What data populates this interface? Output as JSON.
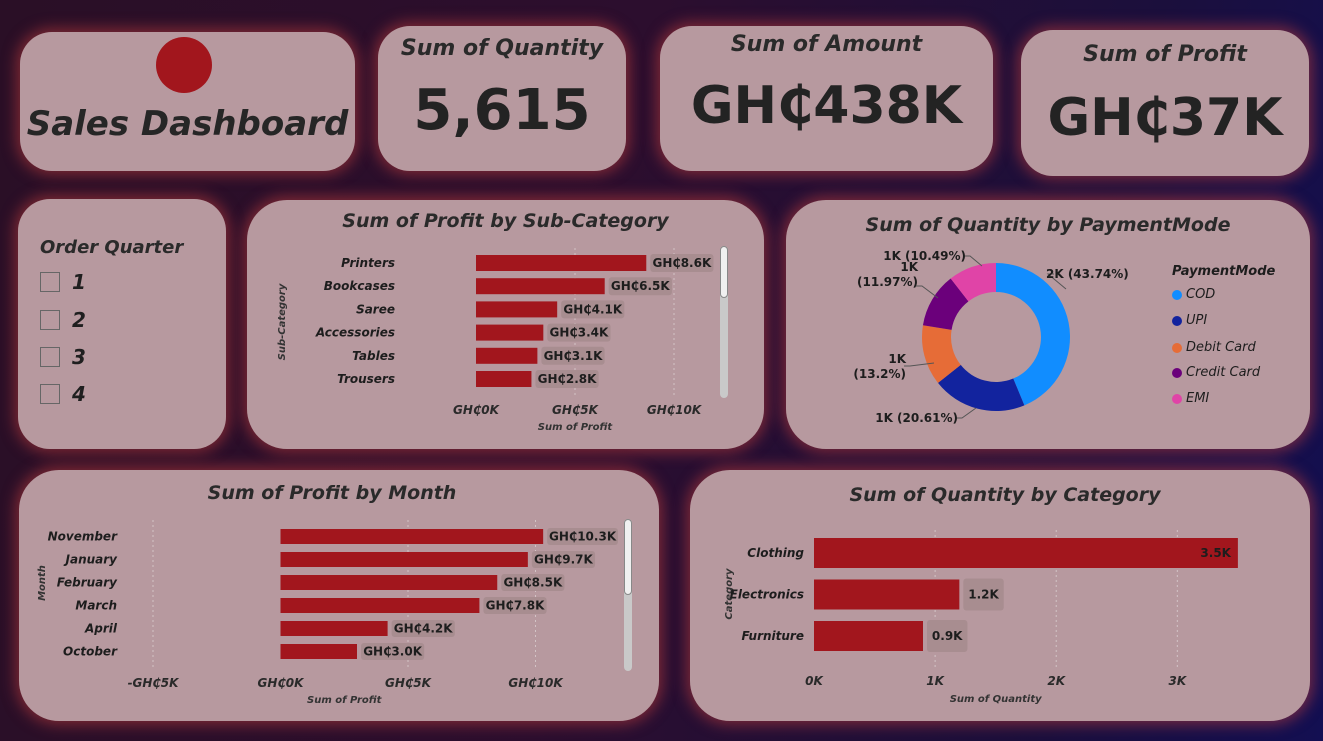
{
  "header": {
    "title": "Sales Dashboard",
    "logo_color": "#a2161d"
  },
  "kpis": [
    {
      "label": "Sum of Quantity",
      "value": "5,615"
    },
    {
      "label": "Sum of Amount",
      "value": "GH₵438K"
    },
    {
      "label": "Sum of Profit",
      "value": "GH₵37K"
    }
  ],
  "slicer": {
    "title": "Order Quarter",
    "options": [
      "1",
      "2",
      "3",
      "4"
    ]
  },
  "colors": {
    "bar": "#a2161d",
    "label_bg": "#a88d90"
  },
  "chart_data": [
    {
      "id": "profit_by_subcategory",
      "type": "bar",
      "orientation": "horizontal",
      "title": "Sum of Profit by Sub-Category",
      "xlabel": "Sum of Profit",
      "ylabel": "Sub-Category",
      "categories": [
        "Printers",
        "Bookcases",
        "Saree",
        "Accessories",
        "Tables",
        "Trousers"
      ],
      "values": [
        8600,
        6500,
        4100,
        3400,
        3100,
        2800
      ],
      "data_labels": [
        "GH₵8.6K",
        "GH₵6.5K",
        "GH₵4.1K",
        "GH₵3.4K",
        "GH₵3.1K",
        "GH₵2.8K"
      ],
      "xlim": [
        0,
        10000
      ],
      "xticks": [
        0,
        5000,
        10000
      ],
      "xtick_labels": [
        "GH₵0K",
        "GH₵5K",
        "GH₵10K"
      ]
    },
    {
      "id": "quantity_by_paymentmode",
      "type": "pie",
      "title": "Sum of Quantity by PaymentMode",
      "legend_title": "PaymentMode",
      "legend_position": "right",
      "labels": [
        "COD",
        "UPI",
        "Debit Card",
        "Credit Card",
        "EMI"
      ],
      "values": [
        43.74,
        20.61,
        13.2,
        11.97,
        10.49
      ],
      "colors": [
        "#118dff",
        "#12239e",
        "#e66c37",
        "#6b007b",
        "#e044a7"
      ],
      "data_labels": [
        "2K (43.74%)",
        "1K (20.61%)",
        "1K\n(13.2%)",
        "1K\n(11.97%)",
        "1K (10.49%)"
      ]
    },
    {
      "id": "profit_by_month",
      "type": "bar",
      "orientation": "horizontal",
      "title": "Sum of Profit by Month",
      "xlabel": "Sum of Profit",
      "ylabel": "Month",
      "categories": [
        "November",
        "January",
        "February",
        "March",
        "April",
        "October"
      ],
      "values": [
        10300,
        9700,
        8500,
        7800,
        4200,
        3000
      ],
      "data_labels": [
        "GH₵10.3K",
        "GH₵9.7K",
        "GH₵8.5K",
        "GH₵7.8K",
        "GH₵4.2K",
        "GH₵3.0K"
      ],
      "xlim": [
        -5000,
        13000
      ],
      "xticks": [
        -5000,
        0,
        5000,
        10000
      ],
      "xtick_labels": [
        "-GH₵5K",
        "GH₵0K",
        "GH₵5K",
        "GH₵10K"
      ]
    },
    {
      "id": "quantity_by_category",
      "type": "bar",
      "orientation": "horizontal",
      "title": "Sum of Quantity by Category",
      "xlabel": "Sum of Quantity",
      "ylabel": "Category",
      "categories": [
        "Clothing",
        "Electronics",
        "Furniture"
      ],
      "values": [
        3500,
        1200,
        900
      ],
      "data_labels": [
        "3.5K",
        "1.2K",
        "0.9K"
      ],
      "xlim": [
        0,
        3600
      ],
      "xticks": [
        0,
        1000,
        2000,
        3000
      ],
      "xtick_labels": [
        "0K",
        "1K",
        "2K",
        "3K"
      ]
    }
  ]
}
